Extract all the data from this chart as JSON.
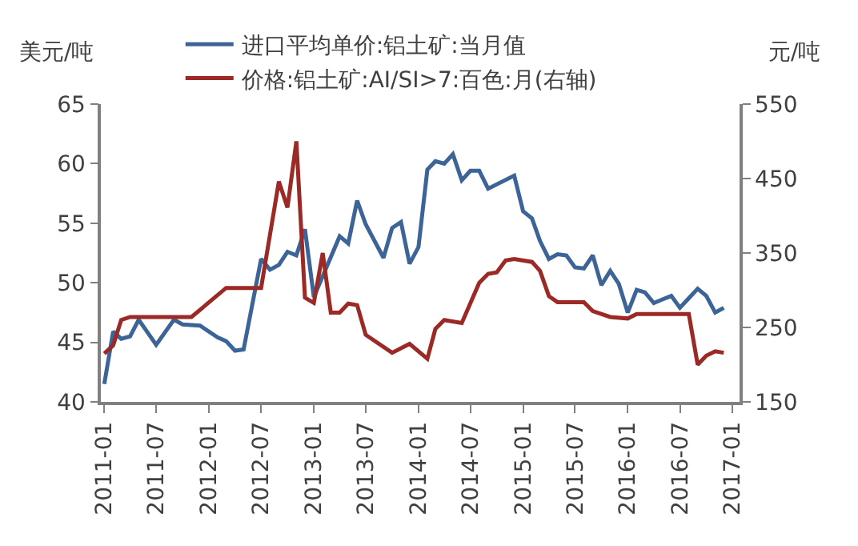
{
  "chart_data": {
    "type": "line",
    "xlabel": null,
    "ylabel": "美元/吨",
    "y2label": "元/吨",
    "xlim": [
      "2010-12-20",
      "2017-01-25"
    ],
    "xticks": [
      "2011-01",
      "2011-07",
      "2012-01",
      "2012-07",
      "2013-01",
      "2013-07",
      "2014-01",
      "2014-07",
      "2015-01",
      "2015-07",
      "2016-01",
      "2016-07",
      "2017-01"
    ],
    "ylim": [
      40,
      65
    ],
    "yticks": [
      40,
      45,
      50,
      55,
      60,
      65
    ],
    "y2lim": [
      150,
      550
    ],
    "y2ticks": [
      150,
      250,
      350,
      450,
      550
    ],
    "legend": "top",
    "marker": "none",
    "line_style": "solid",
    "series": [
      {
        "name": "进口平均单价:铝土矿:当月值",
        "color": "#3c6496",
        "x": [
          "2011-01",
          "2011-02",
          "2011-03",
          "2011-04",
          "2011-05",
          "2011-07",
          "2011-09",
          "2011-10",
          "2011-12",
          "2012-02",
          "2012-03",
          "2012-04",
          "2012-05",
          "2012-07",
          "2012-08",
          "2012-09",
          "2012-10",
          "2012-11",
          "2012-12",
          "2013-01",
          "2013-04",
          "2013-05",
          "2013-06",
          "2013-07",
          "2013-09",
          "2013-10",
          "2013-11",
          "2013-12",
          "2014-01",
          "2014-02",
          "2014-03",
          "2014-04",
          "2014-05",
          "2014-06",
          "2014-07",
          "2014-08",
          "2014-09",
          "2014-12",
          "2015-01",
          "2015-02",
          "2015-03",
          "2015-04",
          "2015-05",
          "2015-06",
          "2015-07",
          "2015-08",
          "2015-09",
          "2015-10",
          "2015-11",
          "2015-12",
          "2016-01",
          "2016-02",
          "2016-03",
          "2016-04",
          "2016-05",
          "2016-06",
          "2016-07",
          "2016-08",
          "2016-09",
          "2016-10",
          "2016-11",
          "2016-12"
        ],
        "values": [
          41.5,
          45.9,
          45.3,
          45.5,
          46.9,
          44.8,
          46.9,
          46.5,
          46.4,
          45.4,
          45.1,
          44.3,
          44.4,
          52.0,
          51.1,
          51.5,
          52.6,
          52.3,
          54.5,
          48.8,
          53.9,
          53.3,
          56.9,
          54.9,
          52.1,
          54.6,
          55.1,
          51.6,
          53.0,
          59.5,
          60.2,
          60.0,
          60.8,
          58.6,
          59.4,
          59.4,
          57.9,
          59.0,
          56.0,
          55.4,
          53.5,
          52.0,
          52.4,
          52.3,
          51.3,
          51.2,
          52.3,
          49.8,
          51.0,
          49.9,
          47.5,
          49.4,
          49.2,
          48.3,
          48.6,
          48.9,
          47.9,
          48.7,
          49.5,
          48.9,
          47.5,
          47.9
        ]
      },
      {
        "name": "价格:铝土矿:AI/SI>7:百色:月(右轴)",
        "color": "#9b2a26",
        "axis": "y2",
        "x": [
          "2011-01",
          "2011-02",
          "2011-03",
          "2011-04",
          "2011-11",
          "2012-03",
          "2012-07",
          "2012-09",
          "2012-10",
          "2012-11",
          "2012-12",
          "2013-01",
          "2013-02",
          "2013-03",
          "2013-04",
          "2013-05",
          "2013-06",
          "2013-07",
          "2013-10",
          "2013-12",
          "2014-02",
          "2014-03",
          "2014-04",
          "2014-06",
          "2014-08",
          "2014-09",
          "2014-10",
          "2014-11",
          "2014-12",
          "2015-02",
          "2015-03",
          "2015-04",
          "2015-05",
          "2015-08",
          "2015-09",
          "2015-11",
          "2016-01",
          "2016-02",
          "2016-08",
          "2016-09",
          "2016-10",
          "2016-11",
          "2016-12"
        ],
        "values": [
          215,
          226,
          260,
          264,
          264,
          303,
          303,
          446,
          411,
          500,
          290,
          283,
          350,
          270,
          270,
          282,
          280,
          240,
          216,
          228,
          208,
          248,
          260,
          256,
          310,
          322,
          324,
          340,
          342,
          338,
          326,
          292,
          284,
          284,
          272,
          264,
          262,
          268,
          268,
          200,
          212,
          218,
          216
        ]
      }
    ]
  }
}
